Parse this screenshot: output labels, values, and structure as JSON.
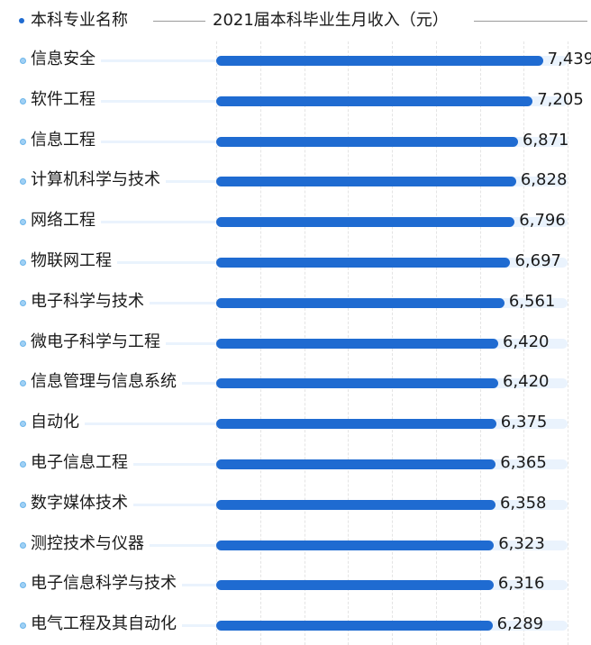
{
  "header": {
    "left_label": "本科专业名称",
    "right_label": "2021届本科毕业生月收入（元）"
  },
  "colors": {
    "bar": "#1f6bd1",
    "track": "#eaf3fd",
    "bullet_header": "#1f6bd1",
    "bullet_row": "#9fd0f5"
  },
  "chart_data": {
    "type": "bar",
    "orientation": "horizontal",
    "title": "2021届本科毕业生月收入（元）",
    "xlabel": "2021届本科毕业生月收入（元）",
    "ylabel": "本科专业名称",
    "xlim": [
      0,
      8000
    ],
    "grid": true,
    "categories": [
      "信息安全",
      "软件工程",
      "信息工程",
      "计算机科学与技术",
      "网络工程",
      "物联网工程",
      "电子科学与技术",
      "微电子科学与工程",
      "信息管理与信息系统",
      "自动化",
      "电子信息工程",
      "数字媒体技术",
      "测控技术与仪器",
      "电子信息科学与技术",
      "电气工程及其自动化"
    ],
    "values": [
      7439,
      7205,
      6871,
      6828,
      6796,
      6697,
      6561,
      6420,
      6420,
      6375,
      6365,
      6358,
      6323,
      6316,
      6289
    ],
    "value_labels": [
      "7,439",
      "7,205",
      "6,871",
      "6,828",
      "6,796",
      "6,697",
      "6,561",
      "6,420",
      "6,420",
      "6,375",
      "6,365",
      "6,358",
      "6,323",
      "6,316",
      "6,289"
    ]
  }
}
